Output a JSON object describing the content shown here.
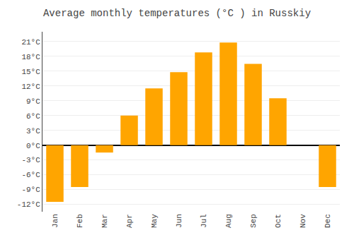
{
  "chart_data": {
    "type": "bar",
    "title": "Average monthly temperatures (°C ) in Russkiy",
    "categories": [
      "Jan",
      "Feb",
      "Mar",
      "Apr",
      "May",
      "Jun",
      "Jul",
      "Aug",
      "Sep",
      "Oct",
      "Nov",
      "Dec"
    ],
    "values": [
      -11.5,
      -8.5,
      -1.5,
      6.0,
      11.5,
      14.8,
      18.8,
      20.8,
      16.5,
      9.5,
      0.0,
      -8.5
    ],
    "color": "#FFA500",
    "ylim": [
      -13.5,
      23
    ],
    "yticks": [
      {
        "value": -12,
        "label": "-12°C"
      },
      {
        "value": -9,
        "label": "-9°C"
      },
      {
        "value": -6,
        "label": "-6°C"
      },
      {
        "value": -3,
        "label": "-3°C"
      },
      {
        "value": 0,
        "label": "0°C"
      },
      {
        "value": 3,
        "label": "3°C"
      },
      {
        "value": 6,
        "label": "6°C"
      },
      {
        "value": 9,
        "label": "9°C"
      },
      {
        "value": 12,
        "label": "12°C"
      },
      {
        "value": 15,
        "label": "15°C"
      },
      {
        "value": 18,
        "label": "18°C"
      },
      {
        "value": 21,
        "label": "21°C"
      }
    ],
    "grid": true
  }
}
